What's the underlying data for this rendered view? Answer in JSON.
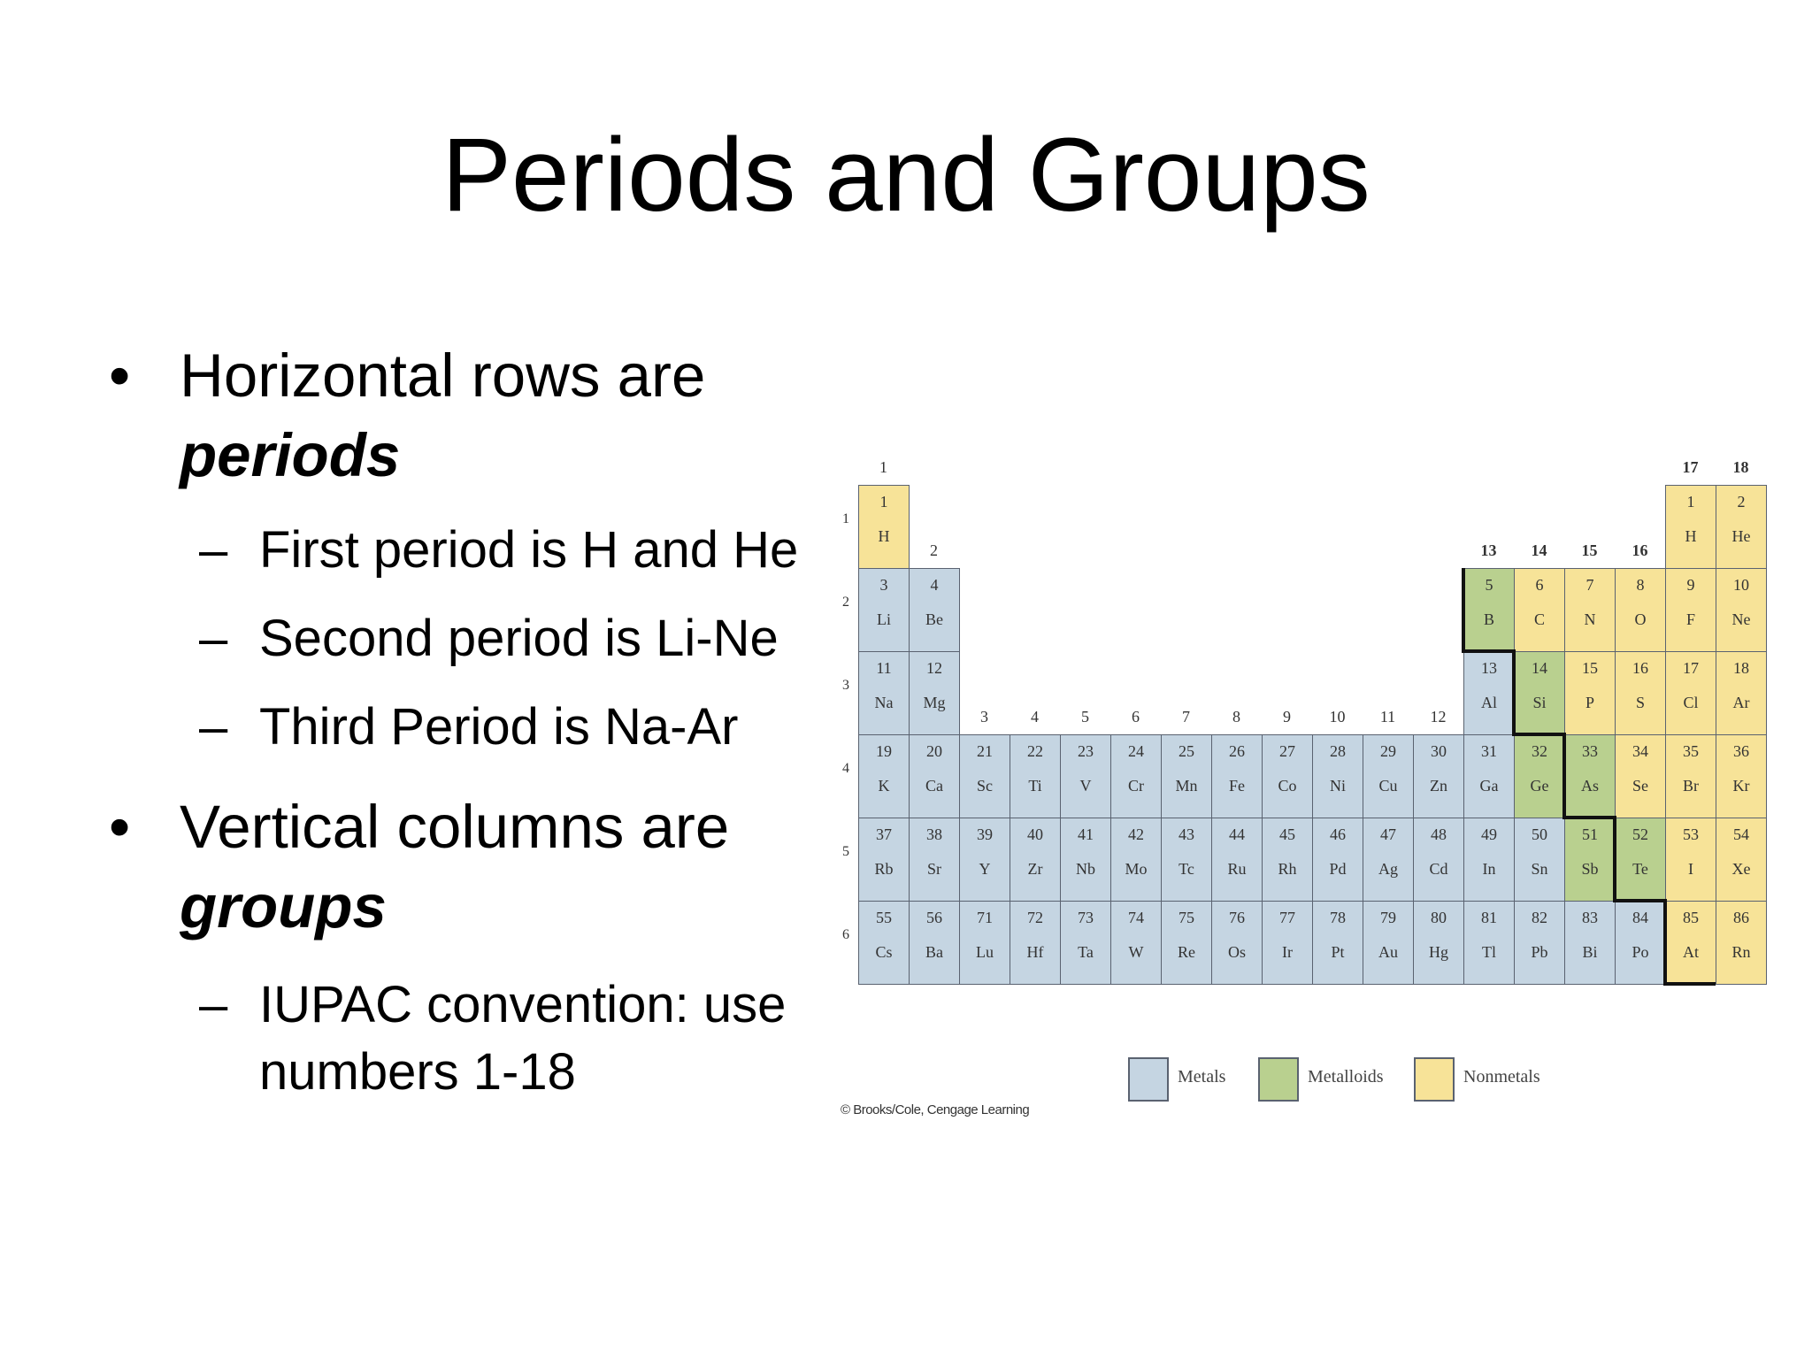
{
  "slide": {
    "title": "Periods and Groups",
    "bullets": [
      {
        "text": "Horizontal rows are",
        "emphasis": "periods",
        "subitems": [
          "First period is H and He",
          "Second period is Li-Ne",
          "Third Period is Na-Ar"
        ]
      },
      {
        "text": "Vertical columns are",
        "emphasis": "groups",
        "subitems": [
          "IUPAC convention:  use",
          "numbers 1-18"
        ]
      }
    ]
  },
  "periodic_table": {
    "colors": {
      "metal": "#c5d5e2",
      "metalloid": "#b9d08f",
      "nonmetal": "#f7e398"
    },
    "group_labels": [
      "1",
      "2",
      "3",
      "4",
      "5",
      "6",
      "7",
      "8",
      "9",
      "10",
      "11",
      "12",
      "13",
      "14",
      "15",
      "16",
      "17",
      "18"
    ],
    "period_labels": [
      "1",
      "2",
      "3",
      "4",
      "5",
      "6"
    ],
    "elements": [
      {
        "z": "1",
        "sym": "H",
        "period": 1,
        "group": 1,
        "cat": "nonmetal"
      },
      {
        "z": "1",
        "sym": "H",
        "period": 1,
        "group": 17,
        "cat": "nonmetal"
      },
      {
        "z": "2",
        "sym": "He",
        "period": 1,
        "group": 18,
        "cat": "nonmetal"
      },
      {
        "z": "3",
        "sym": "Li",
        "period": 2,
        "group": 1,
        "cat": "metal"
      },
      {
        "z": "4",
        "sym": "Be",
        "period": 2,
        "group": 2,
        "cat": "metal"
      },
      {
        "z": "5",
        "sym": "B",
        "period": 2,
        "group": 13,
        "cat": "metalloid"
      },
      {
        "z": "6",
        "sym": "C",
        "period": 2,
        "group": 14,
        "cat": "nonmetal"
      },
      {
        "z": "7",
        "sym": "N",
        "period": 2,
        "group": 15,
        "cat": "nonmetal"
      },
      {
        "z": "8",
        "sym": "O",
        "period": 2,
        "group": 16,
        "cat": "nonmetal"
      },
      {
        "z": "9",
        "sym": "F",
        "period": 2,
        "group": 17,
        "cat": "nonmetal"
      },
      {
        "z": "10",
        "sym": "Ne",
        "period": 2,
        "group": 18,
        "cat": "nonmetal"
      },
      {
        "z": "11",
        "sym": "Na",
        "period": 3,
        "group": 1,
        "cat": "metal"
      },
      {
        "z": "12",
        "sym": "Mg",
        "period": 3,
        "group": 2,
        "cat": "metal"
      },
      {
        "z": "13",
        "sym": "Al",
        "period": 3,
        "group": 13,
        "cat": "metal"
      },
      {
        "z": "14",
        "sym": "Si",
        "period": 3,
        "group": 14,
        "cat": "metalloid"
      },
      {
        "z": "15",
        "sym": "P",
        "period": 3,
        "group": 15,
        "cat": "nonmetal"
      },
      {
        "z": "16",
        "sym": "S",
        "period": 3,
        "group": 16,
        "cat": "nonmetal"
      },
      {
        "z": "17",
        "sym": "Cl",
        "period": 3,
        "group": 17,
        "cat": "nonmetal"
      },
      {
        "z": "18",
        "sym": "Ar",
        "period": 3,
        "group": 18,
        "cat": "nonmetal"
      },
      {
        "z": "19",
        "sym": "K",
        "period": 4,
        "group": 1,
        "cat": "metal"
      },
      {
        "z": "20",
        "sym": "Ca",
        "period": 4,
        "group": 2,
        "cat": "metal"
      },
      {
        "z": "21",
        "sym": "Sc",
        "period": 4,
        "group": 3,
        "cat": "metal"
      },
      {
        "z": "22",
        "sym": "Ti",
        "period": 4,
        "group": 4,
        "cat": "metal"
      },
      {
        "z": "23",
        "sym": "V",
        "period": 4,
        "group": 5,
        "cat": "metal"
      },
      {
        "z": "24",
        "sym": "Cr",
        "period": 4,
        "group": 6,
        "cat": "metal"
      },
      {
        "z": "25",
        "sym": "Mn",
        "period": 4,
        "group": 7,
        "cat": "metal"
      },
      {
        "z": "26",
        "sym": "Fe",
        "period": 4,
        "group": 8,
        "cat": "metal"
      },
      {
        "z": "27",
        "sym": "Co",
        "period": 4,
        "group": 9,
        "cat": "metal"
      },
      {
        "z": "28",
        "sym": "Ni",
        "period": 4,
        "group": 10,
        "cat": "metal"
      },
      {
        "z": "29",
        "sym": "Cu",
        "period": 4,
        "group": 11,
        "cat": "metal"
      },
      {
        "z": "30",
        "sym": "Zn",
        "period": 4,
        "group": 12,
        "cat": "metal"
      },
      {
        "z": "31",
        "sym": "Ga",
        "period": 4,
        "group": 13,
        "cat": "metal"
      },
      {
        "z": "32",
        "sym": "Ge",
        "period": 4,
        "group": 14,
        "cat": "metalloid"
      },
      {
        "z": "33",
        "sym": "As",
        "period": 4,
        "group": 15,
        "cat": "metalloid"
      },
      {
        "z": "34",
        "sym": "Se",
        "period": 4,
        "group": 16,
        "cat": "nonmetal"
      },
      {
        "z": "35",
        "sym": "Br",
        "period": 4,
        "group": 17,
        "cat": "nonmetal"
      },
      {
        "z": "36",
        "sym": "Kr",
        "period": 4,
        "group": 18,
        "cat": "nonmetal"
      },
      {
        "z": "37",
        "sym": "Rb",
        "period": 5,
        "group": 1,
        "cat": "metal"
      },
      {
        "z": "38",
        "sym": "Sr",
        "period": 5,
        "group": 2,
        "cat": "metal"
      },
      {
        "z": "39",
        "sym": "Y",
        "period": 5,
        "group": 3,
        "cat": "metal"
      },
      {
        "z": "40",
        "sym": "Zr",
        "period": 5,
        "group": 4,
        "cat": "metal"
      },
      {
        "z": "41",
        "sym": "Nb",
        "period": 5,
        "group": 5,
        "cat": "metal"
      },
      {
        "z": "42",
        "sym": "Mo",
        "period": 5,
        "group": 6,
        "cat": "metal"
      },
      {
        "z": "43",
        "sym": "Tc",
        "period": 5,
        "group": 7,
        "cat": "metal"
      },
      {
        "z": "44",
        "sym": "Ru",
        "period": 5,
        "group": 8,
        "cat": "metal"
      },
      {
        "z": "45",
        "sym": "Rh",
        "period": 5,
        "group": 9,
        "cat": "metal"
      },
      {
        "z": "46",
        "sym": "Pd",
        "period": 5,
        "group": 10,
        "cat": "metal"
      },
      {
        "z": "47",
        "sym": "Ag",
        "period": 5,
        "group": 11,
        "cat": "metal"
      },
      {
        "z": "48",
        "sym": "Cd",
        "period": 5,
        "group": 12,
        "cat": "metal"
      },
      {
        "z": "49",
        "sym": "In",
        "period": 5,
        "group": 13,
        "cat": "metal"
      },
      {
        "z": "50",
        "sym": "Sn",
        "period": 5,
        "group": 14,
        "cat": "metal"
      },
      {
        "z": "51",
        "sym": "Sb",
        "period": 5,
        "group": 15,
        "cat": "metalloid"
      },
      {
        "z": "52",
        "sym": "Te",
        "period": 5,
        "group": 16,
        "cat": "metalloid"
      },
      {
        "z": "53",
        "sym": "I",
        "period": 5,
        "group": 17,
        "cat": "nonmetal"
      },
      {
        "z": "54",
        "sym": "Xe",
        "period": 5,
        "group": 18,
        "cat": "nonmetal"
      },
      {
        "z": "55",
        "sym": "Cs",
        "period": 6,
        "group": 1,
        "cat": "metal"
      },
      {
        "z": "56",
        "sym": "Ba",
        "period": 6,
        "group": 2,
        "cat": "metal"
      },
      {
        "z": "71",
        "sym": "Lu",
        "period": 6,
        "group": 3,
        "cat": "metal"
      },
      {
        "z": "72",
        "sym": "Hf",
        "period": 6,
        "group": 4,
        "cat": "metal"
      },
      {
        "z": "73",
        "sym": "Ta",
        "period": 6,
        "group": 5,
        "cat": "metal"
      },
      {
        "z": "74",
        "sym": "W",
        "period": 6,
        "group": 6,
        "cat": "metal"
      },
      {
        "z": "75",
        "sym": "Re",
        "period": 6,
        "group": 7,
        "cat": "metal"
      },
      {
        "z": "76",
        "sym": "Os",
        "period": 6,
        "group": 8,
        "cat": "metal"
      },
      {
        "z": "77",
        "sym": "Ir",
        "period": 6,
        "group": 9,
        "cat": "metal"
      },
      {
        "z": "78",
        "sym": "Pt",
        "period": 6,
        "group": 10,
        "cat": "metal"
      },
      {
        "z": "79",
        "sym": "Au",
        "period": 6,
        "group": 11,
        "cat": "metal"
      },
      {
        "z": "80",
        "sym": "Hg",
        "period": 6,
        "group": 12,
        "cat": "metal"
      },
      {
        "z": "81",
        "sym": "Tl",
        "period": 6,
        "group": 13,
        "cat": "metal"
      },
      {
        "z": "82",
        "sym": "Pb",
        "period": 6,
        "group": 14,
        "cat": "metal"
      },
      {
        "z": "83",
        "sym": "Bi",
        "period": 6,
        "group": 15,
        "cat": "metal"
      },
      {
        "z": "84",
        "sym": "Po",
        "period": 6,
        "group": 16,
        "cat": "metal"
      },
      {
        "z": "85",
        "sym": "At",
        "period": 6,
        "group": 17,
        "cat": "nonmetal"
      },
      {
        "z": "86",
        "sym": "Rn",
        "period": 6,
        "group": 18,
        "cat": "nonmetal"
      }
    ],
    "legend": [
      {
        "label": "Metals",
        "cat": "metal"
      },
      {
        "label": "Metalloids",
        "cat": "metalloid"
      },
      {
        "label": "Nonmetals",
        "cat": "nonmetal"
      }
    ],
    "credit": "© Brooks/Cole, Cengage Learning"
  }
}
